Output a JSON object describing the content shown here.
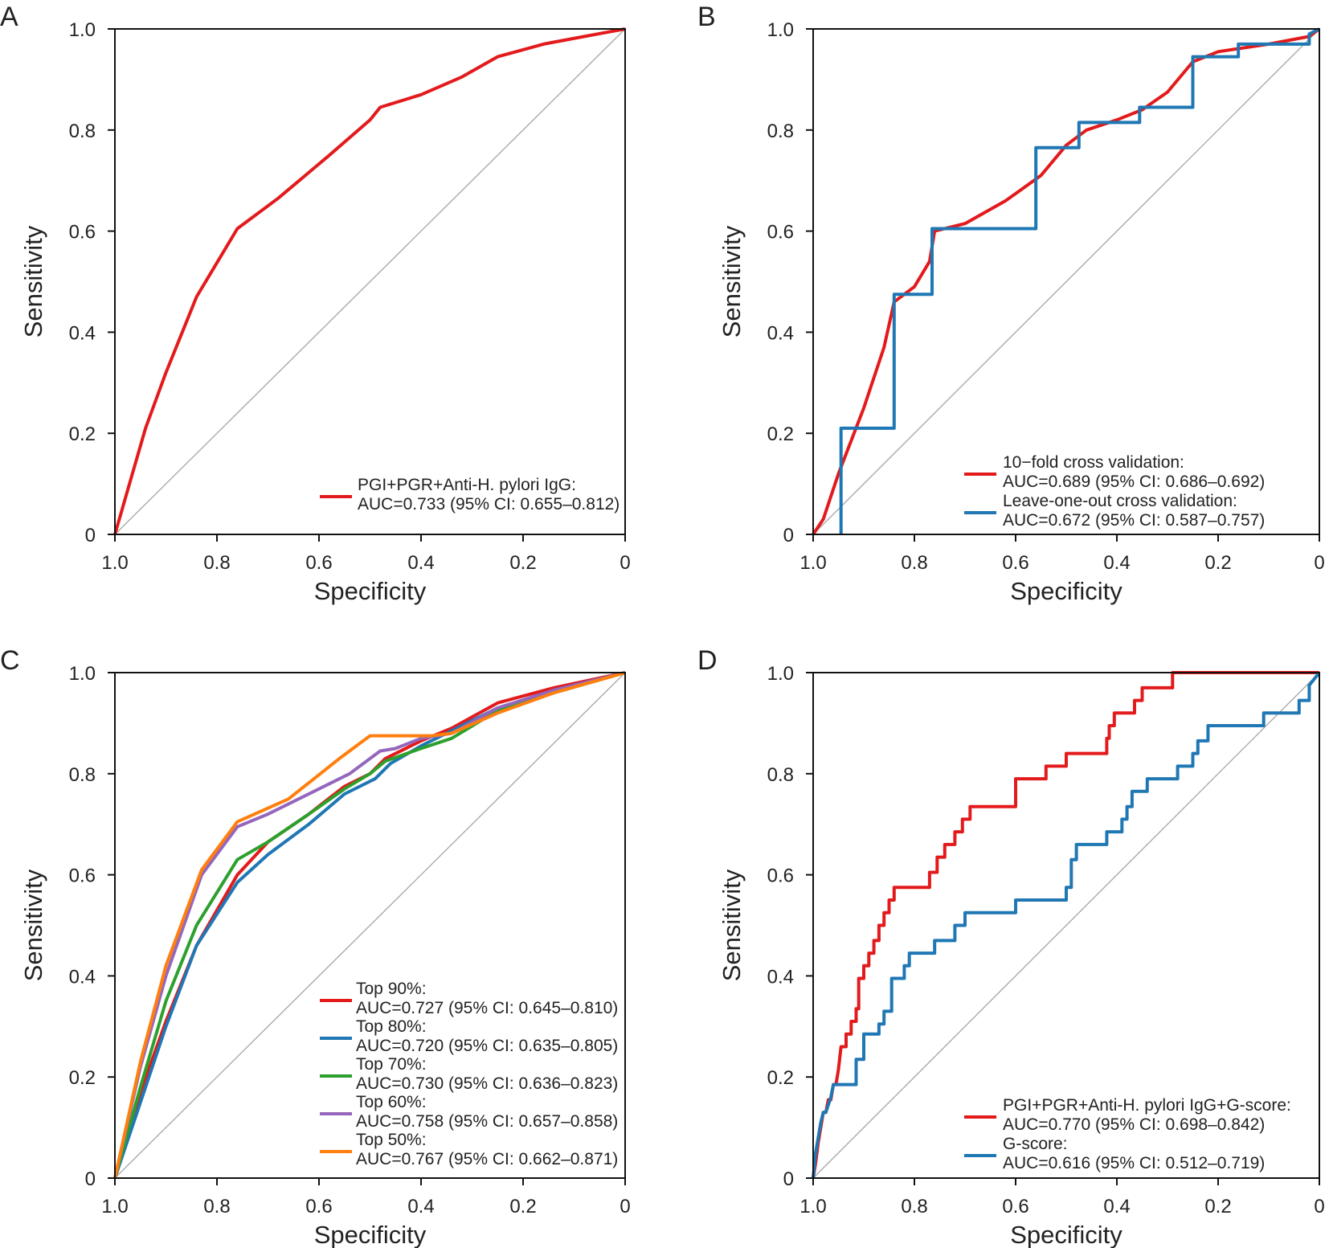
{
  "figure": {
    "panels": [
      "A",
      "B",
      "C",
      "D"
    ]
  },
  "chart_data": [
    {
      "panel": "A",
      "type": "line",
      "xlabel": "Specificity",
      "ylabel": "Sensitivity",
      "xlim": [
        1.0,
        0
      ],
      "ylim": [
        0,
        1.0
      ],
      "xticks": [
        "1.0",
        "0.8",
        "0.6",
        "0.4",
        "0.2",
        "0"
      ],
      "yticks": [
        "0",
        "0.2",
        "0.4",
        "0.6",
        "0.8",
        "1.0"
      ],
      "grid": false,
      "legend_position": "bottom-right",
      "reference_line": true,
      "series": [
        {
          "label_line1": "PGI+PGR+Anti-H. pylori IgG:",
          "label_line2": "AUC=0.733 (95% CI: 0.655–0.812)",
          "color": "#e31a1c",
          "step": false,
          "specificity": [
            1.0,
            0.94,
            0.9,
            0.84,
            0.76,
            0.68,
            0.58,
            0.5,
            0.48,
            0.4,
            0.32,
            0.25,
            0.16,
            0.08,
            0.0
          ],
          "sensitivity": [
            0.0,
            0.21,
            0.32,
            0.47,
            0.605,
            0.665,
            0.75,
            0.82,
            0.845,
            0.87,
            0.905,
            0.945,
            0.97,
            0.985,
            1.0
          ]
        }
      ]
    },
    {
      "panel": "B",
      "type": "line",
      "xlabel": "Specificity",
      "ylabel": "Sensitivity",
      "xlim": [
        1.0,
        0
      ],
      "ylim": [
        0,
        1.0
      ],
      "xticks": [
        "1.0",
        "0.8",
        "0.6",
        "0.4",
        "0.2",
        "0"
      ],
      "yticks": [
        "0",
        "0.2",
        "0.4",
        "0.6",
        "0.8",
        "1.0"
      ],
      "grid": false,
      "legend_position": "bottom-right",
      "reference_line": true,
      "series": [
        {
          "label_line1": "10−fold cross validation:",
          "label_line2": "AUC=0.689 (95% CI: 0.686–0.692)",
          "color": "#e31a1c",
          "step": false,
          "specificity": [
            1.0,
            0.98,
            0.95,
            0.9,
            0.86,
            0.84,
            0.8,
            0.77,
            0.76,
            0.7,
            0.62,
            0.55,
            0.5,
            0.46,
            0.4,
            0.35,
            0.3,
            0.25,
            0.2,
            0.1,
            0.02,
            0.0
          ],
          "sensitivity": [
            0.0,
            0.03,
            0.12,
            0.25,
            0.37,
            0.46,
            0.49,
            0.54,
            0.6,
            0.615,
            0.66,
            0.71,
            0.77,
            0.8,
            0.82,
            0.84,
            0.875,
            0.935,
            0.955,
            0.97,
            0.985,
            1.0
          ]
        },
        {
          "label_line1": "Leave-one-out cross validation:",
          "label_line2": "AUC=0.672 (95% CI: 0.587–0.757)",
          "color": "#1f77b4",
          "step": true,
          "specificity": [
            0.945,
            0.945,
            0.84,
            0.84,
            0.765,
            0.765,
            0.56,
            0.56,
            0.475,
            0.475,
            0.355,
            0.355,
            0.25,
            0.25,
            0.16,
            0.16,
            0.02,
            0.02,
            0.0
          ],
          "sensitivity": [
            0.0,
            0.21,
            0.21,
            0.475,
            0.475,
            0.605,
            0.605,
            0.765,
            0.765,
            0.815,
            0.815,
            0.845,
            0.845,
            0.945,
            0.945,
            0.97,
            0.97,
            0.99,
            1.0
          ]
        }
      ]
    },
    {
      "panel": "C",
      "type": "line",
      "xlabel": "Specificity",
      "ylabel": "Sensitivity",
      "xlim": [
        1.0,
        0
      ],
      "ylim": [
        0,
        1.0
      ],
      "xticks": [
        "1.0",
        "0.8",
        "0.6",
        "0.4",
        "0.2",
        "0"
      ],
      "yticks": [
        "0",
        "0.2",
        "0.4",
        "0.6",
        "0.8",
        "1.0"
      ],
      "grid": false,
      "legend_position": "bottom-right",
      "reference_line": true,
      "series": [
        {
          "label_line1": "Top 90%:",
          "label_line2": "AUC=0.727 (95% CI: 0.645–0.810)",
          "color": "#e31a1c",
          "step": false,
          "specificity": [
            1.0,
            0.95,
            0.9,
            0.84,
            0.76,
            0.7,
            0.62,
            0.55,
            0.5,
            0.47,
            0.4,
            0.34,
            0.25,
            0.14,
            0.0
          ],
          "sensitivity": [
            0.0,
            0.17,
            0.31,
            0.46,
            0.6,
            0.665,
            0.72,
            0.775,
            0.8,
            0.83,
            0.865,
            0.89,
            0.94,
            0.97,
            1.0
          ]
        },
        {
          "label_line1": "Top 80%:",
          "label_line2": "AUC=0.720 (95% CI: 0.635–0.805)",
          "color": "#1f77b4",
          "step": false,
          "specificity": [
            1.0,
            0.95,
            0.9,
            0.84,
            0.76,
            0.7,
            0.62,
            0.55,
            0.49,
            0.46,
            0.4,
            0.34,
            0.25,
            0.14,
            0.0
          ],
          "sensitivity": [
            0.0,
            0.15,
            0.3,
            0.46,
            0.585,
            0.64,
            0.7,
            0.76,
            0.79,
            0.82,
            0.855,
            0.885,
            0.93,
            0.965,
            1.0
          ]
        },
        {
          "label_line1": "Top 70%:",
          "label_line2": "AUC=0.730 (95% CI: 0.636–0.823)",
          "color": "#2ca02c",
          "step": false,
          "specificity": [
            1.0,
            0.95,
            0.9,
            0.84,
            0.76,
            0.7,
            0.62,
            0.55,
            0.5,
            0.47,
            0.4,
            0.34,
            0.25,
            0.14,
            0.0
          ],
          "sensitivity": [
            0.0,
            0.18,
            0.35,
            0.5,
            0.63,
            0.665,
            0.72,
            0.77,
            0.8,
            0.825,
            0.85,
            0.87,
            0.925,
            0.96,
            1.0
          ]
        },
        {
          "label_line1": "Top 60%:",
          "label_line2": "AUC=0.758 (95% CI: 0.657–0.858)",
          "color": "#9467bd",
          "step": false,
          "specificity": [
            1.0,
            0.95,
            0.9,
            0.83,
            0.76,
            0.7,
            0.6,
            0.54,
            0.48,
            0.45,
            0.4,
            0.34,
            0.25,
            0.14,
            0.0
          ],
          "sensitivity": [
            0.0,
            0.22,
            0.4,
            0.6,
            0.695,
            0.72,
            0.77,
            0.8,
            0.845,
            0.85,
            0.87,
            0.88,
            0.93,
            0.965,
            1.0
          ]
        },
        {
          "label_line1": "Top 50%:",
          "label_line2": "AUC=0.767 (95% CI: 0.662–0.871)",
          "color": "#ff7f0e",
          "step": false,
          "specificity": [
            1.0,
            0.95,
            0.9,
            0.83,
            0.76,
            0.66,
            0.56,
            0.5,
            0.45,
            0.38,
            0.34,
            0.25,
            0.14,
            0.0
          ],
          "sensitivity": [
            0.0,
            0.23,
            0.42,
            0.61,
            0.705,
            0.75,
            0.83,
            0.875,
            0.875,
            0.875,
            0.88,
            0.92,
            0.96,
            1.0
          ]
        }
      ]
    },
    {
      "panel": "D",
      "type": "line",
      "xlabel": "Specificity",
      "ylabel": "Sensitivity",
      "xlim": [
        1.0,
        0
      ],
      "ylim": [
        0,
        1.0
      ],
      "xticks": [
        "1.0",
        "0.8",
        "0.6",
        "0.4",
        "0.2",
        "0"
      ],
      "yticks": [
        "0",
        "0.2",
        "0.4",
        "0.6",
        "0.8",
        "1.0"
      ],
      "grid": false,
      "legend_position": "bottom-right",
      "reference_line": true,
      "series": [
        {
          "label_line1": "PGI+PGR+Anti-H. pylori IgG+G-score:",
          "label_line2": "AUC=0.770 (95% CI: 0.698–0.842)",
          "color": "#e31a1c",
          "step": true,
          "specificity": [
            1.0,
            0.995,
            0.99,
            0.985,
            0.98,
            0.975,
            0.97,
            0.965,
            0.96,
            0.955,
            0.95,
            0.945,
            0.935,
            0.935,
            0.925,
            0.925,
            0.915,
            0.915,
            0.91,
            0.91,
            0.9,
            0.9,
            0.89,
            0.89,
            0.88,
            0.88,
            0.87,
            0.87,
            0.86,
            0.86,
            0.85,
            0.85,
            0.84,
            0.84,
            0.82,
            0.82,
            0.77,
            0.77,
            0.755,
            0.755,
            0.74,
            0.74,
            0.72,
            0.72,
            0.705,
            0.705,
            0.69,
            0.69,
            0.68,
            0.68,
            0.6,
            0.6,
            0.54,
            0.54,
            0.5,
            0.5,
            0.455,
            0.455,
            0.42,
            0.42,
            0.415,
            0.415,
            0.405,
            0.405,
            0.39,
            0.39,
            0.365,
            0.365,
            0.35,
            0.35,
            0.33,
            0.33,
            0.29,
            0.29,
            0.0
          ],
          "sensitivity": [
            0.0,
            0.03,
            0.07,
            0.1,
            0.13,
            0.13,
            0.155,
            0.155,
            0.185,
            0.185,
            0.215,
            0.26,
            0.26,
            0.285,
            0.285,
            0.31,
            0.31,
            0.335,
            0.335,
            0.395,
            0.395,
            0.42,
            0.42,
            0.445,
            0.445,
            0.47,
            0.47,
            0.5,
            0.5,
            0.525,
            0.525,
            0.55,
            0.55,
            0.575,
            0.575,
            0.575,
            0.575,
            0.605,
            0.605,
            0.635,
            0.635,
            0.66,
            0.66,
            0.685,
            0.685,
            0.71,
            0.71,
            0.735,
            0.735,
            0.735,
            0.735,
            0.79,
            0.79,
            0.815,
            0.815,
            0.84,
            0.84,
            0.84,
            0.84,
            0.87,
            0.87,
            0.895,
            0.895,
            0.92,
            0.92,
            0.92,
            0.92,
            0.945,
            0.945,
            0.97,
            0.97,
            0.97,
            0.97,
            1.0,
            1.0
          ]
        },
        {
          "label_line1": "G-score:",
          "label_line2": "AUC=0.616 (95% CI: 0.512–0.719)",
          "color": "#1f77b4",
          "step": true,
          "specificity": [
            1.0,
            0.995,
            0.99,
            0.985,
            0.98,
            0.975,
            0.965,
            0.96,
            0.94,
            0.94,
            0.915,
            0.915,
            0.9,
            0.9,
            0.87,
            0.87,
            0.86,
            0.86,
            0.845,
            0.845,
            0.82,
            0.82,
            0.81,
            0.81,
            0.77,
            0.77,
            0.76,
            0.76,
            0.74,
            0.74,
            0.72,
            0.72,
            0.7,
            0.7,
            0.68,
            0.68,
            0.6,
            0.6,
            0.5,
            0.5,
            0.49,
            0.49,
            0.48,
            0.48,
            0.42,
            0.42,
            0.4,
            0.4,
            0.39,
            0.39,
            0.38,
            0.38,
            0.37,
            0.37,
            0.36,
            0.36,
            0.34,
            0.34,
            0.3,
            0.3,
            0.28,
            0.28,
            0.26,
            0.26,
            0.25,
            0.25,
            0.24,
            0.24,
            0.22,
            0.22,
            0.19,
            0.19,
            0.11,
            0.11,
            0.04,
            0.04,
            0.02,
            0.02,
            0.0
          ],
          "sensitivity": [
            0.0,
            0.05,
            0.08,
            0.11,
            0.13,
            0.13,
            0.16,
            0.185,
            0.185,
            0.185,
            0.185,
            0.235,
            0.235,
            0.285,
            0.285,
            0.305,
            0.305,
            0.33,
            0.33,
            0.395,
            0.395,
            0.42,
            0.42,
            0.445,
            0.445,
            0.445,
            0.445,
            0.47,
            0.47,
            0.47,
            0.47,
            0.5,
            0.5,
            0.525,
            0.525,
            0.525,
            0.525,
            0.55,
            0.55,
            0.575,
            0.575,
            0.63,
            0.63,
            0.66,
            0.66,
            0.685,
            0.685,
            0.685,
            0.685,
            0.71,
            0.71,
            0.735,
            0.735,
            0.765,
            0.765,
            0.765,
            0.765,
            0.79,
            0.79,
            0.79,
            0.79,
            0.815,
            0.815,
            0.815,
            0.815,
            0.84,
            0.84,
            0.865,
            0.865,
            0.895,
            0.895,
            0.895,
            0.895,
            0.92,
            0.92,
            0.945,
            0.945,
            0.975,
            1.0
          ]
        }
      ]
    }
  ]
}
